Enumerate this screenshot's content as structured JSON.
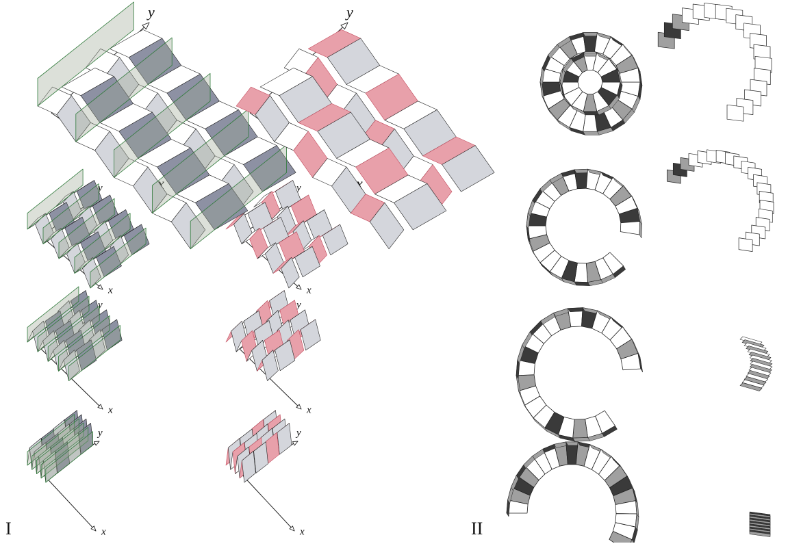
{
  "panels": [
    {
      "id": "I",
      "label": "I"
    },
    {
      "id": "II",
      "label": "II"
    }
  ],
  "axis_labels": {
    "x": "x",
    "y": "y"
  },
  "colors": {
    "paper_gray": "#d4d6dc",
    "paper_shade": "#8d91a3",
    "paper_dark": "#4a4f66",
    "plane_green": "#9aa592",
    "plane_edge": "#2f7a3a",
    "pink": "#e8a0aa",
    "pink_dark": "#c44a5c",
    "face_white": "#ffffff",
    "face_gray": "#a0a0a0",
    "face_dark": "#3a3a3a",
    "line": "#222222"
  },
  "panel_I": {
    "rows": [
      {
        "state": "flat-open"
      },
      {
        "state": "partially-folded"
      },
      {
        "state": "more-folded"
      },
      {
        "state": "nearly-collapsed"
      }
    ],
    "columns": [
      {
        "variant": "green-constraint-planes"
      },
      {
        "variant": "pink-highlighted-faces"
      }
    ]
  },
  "panel_II": {
    "rows": [
      {
        "state": "ring-closed"
      },
      {
        "state": "ring-opening"
      },
      {
        "state": "arc-c-shape"
      },
      {
        "state": "arc-tight"
      }
    ],
    "columns": [
      {
        "view": "ring-view"
      },
      {
        "view": "side-arc-view"
      }
    ]
  }
}
